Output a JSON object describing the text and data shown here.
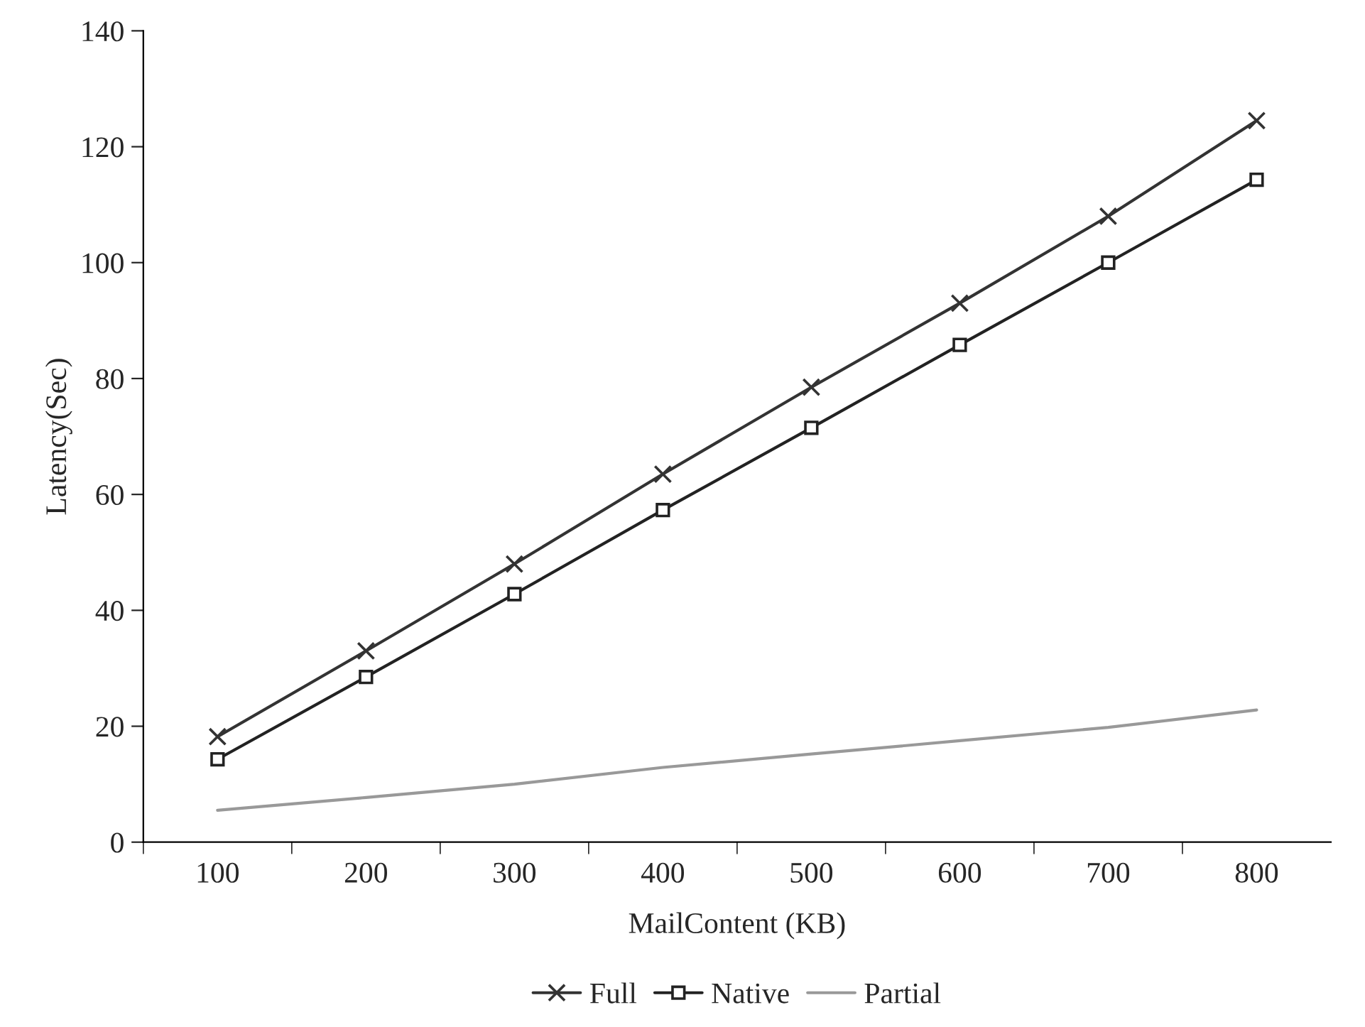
{
  "chart_data": {
    "type": "line",
    "xlabel": "MailContent (KB)",
    "ylabel": "Latency(Sec)",
    "categories": [
      "100",
      "200",
      "300",
      "400",
      "500",
      "600",
      "700",
      "800"
    ],
    "series": [
      {
        "name": "Full",
        "color": "#333333",
        "marker": "cross",
        "values": [
          18.2,
          33,
          48,
          63.5,
          78.5,
          93,
          108,
          124.5
        ]
      },
      {
        "name": "Native",
        "color": "#222222",
        "marker": "square",
        "values": [
          14.3,
          28.5,
          42.8,
          57.3,
          71.5,
          85.8,
          100,
          114.3
        ]
      },
      {
        "name": "Partial",
        "color": "#999999",
        "marker": "none",
        "values": [
          5.5,
          7.7,
          10,
          12.9,
          15.2,
          17.5,
          19.8,
          22.8
        ]
      }
    ],
    "ylim": [
      0,
      140
    ],
    "yticks": [
      0,
      20,
      40,
      60,
      80,
      100,
      120,
      140
    ],
    "grid": false,
    "legend": "bottom"
  }
}
